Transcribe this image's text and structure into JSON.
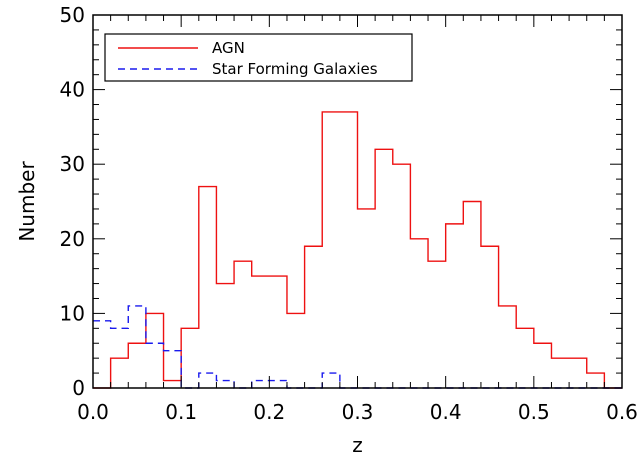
{
  "chart_data": {
    "type": "histogram",
    "title": "",
    "xlabel": "z",
    "ylabel": "Number",
    "xlim": [
      0.0,
      0.6
    ],
    "ylim": [
      0,
      50
    ],
    "x_ticks": [
      "0.0",
      "0.1",
      "0.2",
      "0.3",
      "0.4",
      "0.5",
      "0.6"
    ],
    "y_ticks": [
      "0",
      "10",
      "20",
      "30",
      "40",
      "50"
    ],
    "bin_edges": [
      0.0,
      0.02,
      0.04,
      0.06,
      0.08,
      0.1,
      0.12,
      0.14,
      0.16,
      0.18,
      0.2,
      0.22,
      0.24,
      0.26,
      0.28,
      0.3,
      0.32,
      0.34,
      0.36,
      0.38,
      0.4,
      0.42,
      0.44,
      0.46,
      0.48,
      0.5,
      0.52,
      0.54,
      0.56,
      0.58,
      0.6
    ],
    "legend_position": "top-left",
    "series": [
      {
        "name": "AGN",
        "color": "#ee1111",
        "line_style": "solid",
        "values": [
          0,
          4,
          6,
          10,
          1,
          8,
          27,
          14,
          17,
          15,
          15,
          10,
          19,
          37,
          37,
          24,
          32,
          30,
          20,
          17,
          22,
          25,
          19,
          11,
          8,
          6,
          4,
          4,
          2,
          0
        ]
      },
      {
        "name": "Star Forming Galaxies",
        "color": "#1a1aee",
        "line_style": "dashed",
        "values": [
          9,
          8,
          11,
          6,
          5,
          0,
          2,
          1,
          0,
          1,
          1,
          0,
          0,
          2,
          0,
          0,
          0,
          0,
          0,
          0,
          0,
          0,
          0,
          0,
          0,
          0,
          0,
          0,
          0,
          0
        ]
      }
    ]
  }
}
